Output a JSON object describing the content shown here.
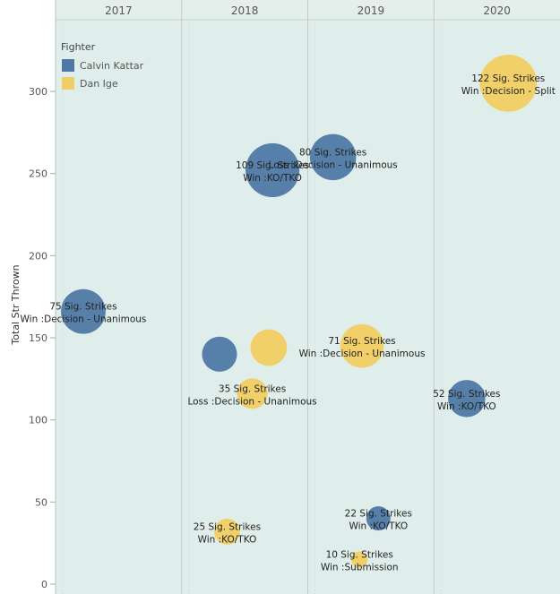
{
  "chart_data": {
    "type": "scatter",
    "title": "",
    "xlabel": "",
    "ylabel": "Total Str Thrown",
    "columns": [
      "2017",
      "2018",
      "2019",
      "2020"
    ],
    "ylim": [
      0,
      340
    ],
    "yticks": [
      0,
      50,
      100,
      150,
      200,
      250,
      300
    ],
    "grid": "vertical dotted",
    "legend": {
      "title": "Fighter",
      "position": "top-left",
      "entries": [
        {
          "name": "Calvin Kattar",
          "color": "#4e79a7"
        },
        {
          "name": "Dan Ige",
          "color": "#f1ce63"
        }
      ]
    },
    "points": [
      {
        "fighter": "Calvin Kattar",
        "column": "2017",
        "xpos": 0.22,
        "y": 166,
        "size": 75,
        "label1": "75 Sig. Strikes",
        "label2": "Win :Decision - Unanimous"
      },
      {
        "fighter": "Calvin Kattar",
        "column": "2018",
        "xpos": 0.3,
        "y": 140,
        "size": 46,
        "label1": "",
        "label2": ""
      },
      {
        "fighter": "Dan Ige",
        "column": "2018",
        "xpos": 0.69,
        "y": 144,
        "size": 50,
        "label1": "",
        "label2": ""
      },
      {
        "fighter": "Calvin Kattar",
        "column": "2018",
        "xpos": 0.72,
        "y": 252,
        "size": 109,
        "label1": "109 Sig. Strikes",
        "label2": "Win :KO/TKO"
      },
      {
        "fighter": "Dan Ige",
        "column": "2018",
        "xpos": 0.56,
        "y": 116,
        "size": 35,
        "label1": "35 Sig. Strikes",
        "label2": "Loss :Decision - Unanimous"
      },
      {
        "fighter": "Dan Ige",
        "column": "2018",
        "xpos": 0.36,
        "y": 32,
        "size": 25,
        "label1": "25 Sig. Strikes",
        "label2": "Win :KO/TKO"
      },
      {
        "fighter": "Calvin Kattar",
        "column": "2019",
        "xpos": 0.2,
        "y": 260,
        "size": 80,
        "label1": "80 Sig. Strikes",
        "label2": "Loss :Decision - Unanimous"
      },
      {
        "fighter": "Dan Ige",
        "column": "2019",
        "xpos": 0.43,
        "y": 145,
        "size": 71,
        "label1": "71 Sig. Strikes",
        "label2": "Win :Decision - Unanimous"
      },
      {
        "fighter": "Calvin Kattar",
        "column": "2019",
        "xpos": 0.56,
        "y": 40,
        "size": 22,
        "label1": "22 Sig. Strikes",
        "label2": "Win :KO/TKO"
      },
      {
        "fighter": "Dan Ige",
        "column": "2019",
        "xpos": 0.41,
        "y": 15,
        "size": 10,
        "label1": "10 Sig. Strikes",
        "label2": "Win :Submission"
      },
      {
        "fighter": "Calvin Kattar",
        "column": "2020",
        "xpos": 0.26,
        "y": 113,
        "size": 52,
        "label1": "52 Sig. Strikes",
        "label2": "Win :KO/TKO"
      },
      {
        "fighter": "Dan Ige",
        "column": "2020",
        "xpos": 0.59,
        "y": 305,
        "size": 122,
        "label1": "122 Sig. Strikes",
        "label2": "Win :Decision - Split"
      }
    ]
  }
}
